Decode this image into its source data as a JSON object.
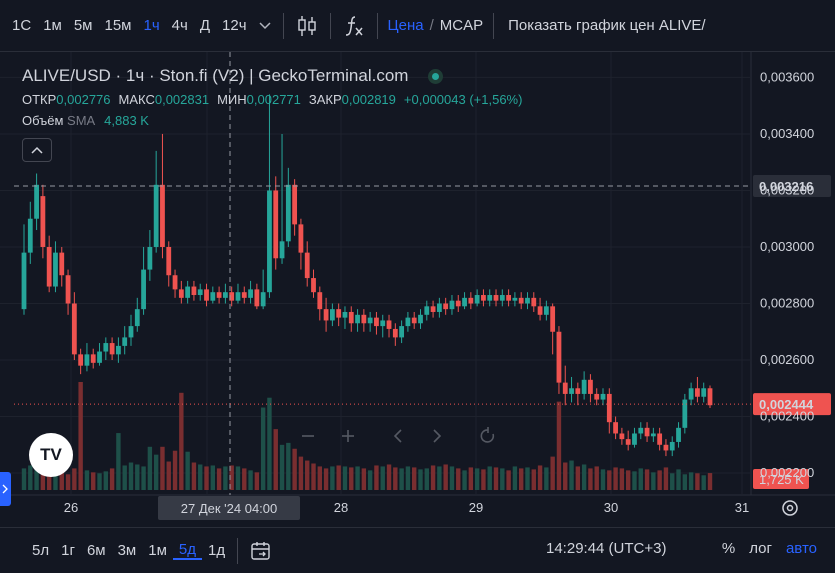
{
  "toolbar": {
    "timeframes": [
      "1С",
      "1м",
      "5м",
      "15м",
      "1ч",
      "4ч",
      "Д",
      "12ч"
    ],
    "active_timeframe": "1ч",
    "price_label": "Цена",
    "separator": "/",
    "mcap_label": "MCAP",
    "show_chart_label": "Показать график цен ALIVE/"
  },
  "legend": {
    "title": "ALIVE/USD · 1ч · Ston.fi (V2) | GeckoTerminal.com",
    "open_key": "ОТКР",
    "open": "0,002776",
    "high_key": "МАКС",
    "high": "0,002831",
    "low_key": "МИН",
    "low": "0,002771",
    "close_key": "ЗАКР",
    "close": "0,002819",
    "change": "+0,000043 (+1,56%)",
    "volume_key": "Объём",
    "volume_sma": "SMA",
    "volume_value": "4,883 K"
  },
  "colors": {
    "up": "#26a69a",
    "down": "#ef5350",
    "accent": "#2962ff",
    "background": "#131722"
  },
  "chart_data": {
    "type": "candlestick",
    "y_ticks": [
      "0,003600",
      "0,003400",
      "0,003200",
      "0,003000",
      "0,002800",
      "0,002600",
      "0,002400",
      "0,002200"
    ],
    "y_tick_values": [
      0.0036,
      0.0034,
      0.0032,
      0.003,
      0.0028,
      0.0026,
      0.0024,
      0.0022
    ],
    "ylim": [
      0.00214,
      0.00369
    ],
    "x_ticks": [
      "26",
      "27",
      "28",
      "29",
      "30",
      "31"
    ],
    "crosshair_price_label": "0,003216",
    "crosshair_price": 0.003216,
    "crosshair_time_label": "27 Дек '24   04:00",
    "last_price_label": "0,002444",
    "last_price": 0.002444,
    "last_volume_label": "1,725 K",
    "candles": [
      [
        0.00278,
        0.00298,
        0.00276,
        0.00308
      ],
      [
        0.00298,
        0.0031,
        0.00294,
        0.00316
      ],
      [
        0.0031,
        0.00322,
        0.00306,
        0.00326
      ],
      [
        0.00318,
        0.003,
        0.00296,
        0.00322
      ],
      [
        0.003,
        0.00286,
        0.00284,
        0.00304
      ],
      [
        0.00286,
        0.00298,
        0.00284,
        0.00302
      ],
      [
        0.00298,
        0.0029,
        0.00286,
        0.003
      ],
      [
        0.0029,
        0.0028,
        0.00276,
        0.00292
      ],
      [
        0.0028,
        0.00262,
        0.0026,
        0.00284
      ],
      [
        0.00262,
        0.00258,
        0.00255,
        0.00264
      ],
      [
        0.00258,
        0.00262,
        0.00256,
        0.00266
      ],
      [
        0.00262,
        0.00259,
        0.00257,
        0.00264
      ],
      [
        0.00259,
        0.00263,
        0.00258,
        0.00266
      ],
      [
        0.00263,
        0.00266,
        0.0026,
        0.00268
      ],
      [
        0.00266,
        0.00262,
        0.0026,
        0.00268
      ],
      [
        0.00262,
        0.00265,
        0.00259,
        0.00268
      ],
      [
        0.00265,
        0.00268,
        0.00262,
        0.00272
      ],
      [
        0.00268,
        0.00272,
        0.00265,
        0.00276
      ],
      [
        0.00272,
        0.00278,
        0.0027,
        0.00282
      ],
      [
        0.00278,
        0.00292,
        0.00276,
        0.003
      ],
      [
        0.00292,
        0.003,
        0.00288,
        0.00306
      ],
      [
        0.003,
        0.00322,
        0.00298,
        0.00334
      ],
      [
        0.00322,
        0.003,
        0.00296,
        0.0034
      ],
      [
        0.003,
        0.0029,
        0.00286,
        0.00302
      ],
      [
        0.0029,
        0.00285,
        0.00282,
        0.00292
      ],
      [
        0.00285,
        0.00282,
        0.0028,
        0.00288
      ],
      [
        0.00282,
        0.00286,
        0.0028,
        0.00288
      ],
      [
        0.00286,
        0.00283,
        0.00281,
        0.00288
      ],
      [
        0.00283,
        0.00285,
        0.00281,
        0.00287
      ],
      [
        0.00285,
        0.00281,
        0.00279,
        0.00287
      ],
      [
        0.00281,
        0.00284,
        0.0028,
        0.00286
      ],
      [
        0.00284,
        0.00282,
        0.0028,
        0.00286
      ],
      [
        0.00282,
        0.00284,
        0.0028,
        0.00287
      ],
      [
        0.00284,
        0.00281,
        0.00279,
        0.00286
      ],
      [
        0.00281,
        0.00284,
        0.0028,
        0.00287
      ],
      [
        0.00284,
        0.00282,
        0.0028,
        0.00286
      ],
      [
        0.00282,
        0.00285,
        0.0028,
        0.00288
      ],
      [
        0.00285,
        0.00279,
        0.00278,
        0.00287
      ],
      [
        0.00279,
        0.00284,
        0.00278,
        0.00292
      ],
      [
        0.00284,
        0.0032,
        0.00282,
        0.00354
      ],
      [
        0.0032,
        0.00296,
        0.00292,
        0.00325
      ],
      [
        0.00296,
        0.00302,
        0.00294,
        0.0034
      ],
      [
        0.00302,
        0.00322,
        0.003,
        0.00328
      ],
      [
        0.00322,
        0.00308,
        0.00304,
        0.00324
      ],
      [
        0.00308,
        0.00298,
        0.00292,
        0.0031
      ],
      [
        0.00298,
        0.00289,
        0.00286,
        0.00302
      ],
      [
        0.00289,
        0.00284,
        0.00282,
        0.00292
      ],
      [
        0.00284,
        0.00278,
        0.00274,
        0.00286
      ],
      [
        0.00278,
        0.00274,
        0.0027,
        0.00282
      ],
      [
        0.00274,
        0.00278,
        0.00272,
        0.0028
      ],
      [
        0.00278,
        0.00275,
        0.00272,
        0.0028
      ],
      [
        0.00275,
        0.00277,
        0.00271,
        0.00279
      ],
      [
        0.00277,
        0.00273,
        0.0027,
        0.00279
      ],
      [
        0.00273,
        0.00276,
        0.0027,
        0.00278
      ],
      [
        0.00276,
        0.00273,
        0.0027,
        0.00278
      ],
      [
        0.00273,
        0.00275,
        0.0027,
        0.00277
      ],
      [
        0.00275,
        0.00272,
        0.00269,
        0.00277
      ],
      [
        0.00272,
        0.00274,
        0.00268,
        0.00276
      ],
      [
        0.00274,
        0.00271,
        0.00268,
        0.00276
      ],
      [
        0.00271,
        0.00268,
        0.00265,
        0.00273
      ],
      [
        0.00268,
        0.00272,
        0.00266,
        0.00274
      ],
      [
        0.00272,
        0.00275,
        0.0027,
        0.00277
      ],
      [
        0.00275,
        0.00273,
        0.00271,
        0.00277
      ],
      [
        0.00273,
        0.00276,
        0.00271,
        0.00278
      ],
      [
        0.00276,
        0.00279,
        0.00274,
        0.00281
      ],
      [
        0.00279,
        0.00277,
        0.00275,
        0.00281
      ],
      [
        0.00277,
        0.0028,
        0.00275,
        0.00282
      ],
      [
        0.0028,
        0.00278,
        0.00276,
        0.00282
      ],
      [
        0.00278,
        0.00281,
        0.00276,
        0.00283
      ],
      [
        0.00281,
        0.00279,
        0.00277,
        0.00283
      ],
      [
        0.00279,
        0.00282,
        0.00278,
        0.00284
      ],
      [
        0.00282,
        0.0028,
        0.00278,
        0.00284
      ],
      [
        0.0028,
        0.00283,
        0.00279,
        0.00285
      ],
      [
        0.00283,
        0.00281,
        0.00279,
        0.00285
      ],
      [
        0.00281,
        0.00283,
        0.00279,
        0.00285
      ],
      [
        0.00283,
        0.00281,
        0.00279,
        0.00285
      ],
      [
        0.00281,
        0.00283,
        0.00279,
        0.00285
      ],
      [
        0.00283,
        0.00281,
        0.00279,
        0.00285
      ],
      [
        0.00281,
        0.00282,
        0.00279,
        0.00284
      ],
      [
        0.00282,
        0.0028,
        0.00278,
        0.00284
      ],
      [
        0.0028,
        0.00282,
        0.00278,
        0.00284
      ],
      [
        0.00282,
        0.00279,
        0.00277,
        0.00284
      ],
      [
        0.00279,
        0.00276,
        0.00274,
        0.00282
      ],
      [
        0.00276,
        0.00279,
        0.00274,
        0.00281
      ],
      [
        0.00279,
        0.0027,
        0.00262,
        0.0028
      ],
      [
        0.0027,
        0.00252,
        0.00248,
        0.00272
      ],
      [
        0.00252,
        0.00248,
        0.00244,
        0.00258
      ],
      [
        0.00248,
        0.0025,
        0.00245,
        0.00254
      ],
      [
        0.0025,
        0.00248,
        0.00244,
        0.00252
      ],
      [
        0.00248,
        0.00253,
        0.00246,
        0.00256
      ],
      [
        0.00253,
        0.00248,
        0.00245,
        0.00255
      ],
      [
        0.00248,
        0.00246,
        0.00244,
        0.0025
      ],
      [
        0.00246,
        0.00248,
        0.00244,
        0.0025
      ],
      [
        0.00248,
        0.00238,
        0.00234,
        0.0025
      ],
      [
        0.00238,
        0.00234,
        0.00232,
        0.0024
      ],
      [
        0.00234,
        0.00232,
        0.0023,
        0.00236
      ],
      [
        0.00232,
        0.0023,
        0.00228,
        0.00235
      ],
      [
        0.0023,
        0.00234,
        0.00229,
        0.00236
      ],
      [
        0.00234,
        0.00236,
        0.00232,
        0.00238
      ],
      [
        0.00236,
        0.00233,
        0.00231,
        0.00238
      ],
      [
        0.00233,
        0.00234,
        0.00231,
        0.00236
      ],
      [
        0.00234,
        0.0023,
        0.00228,
        0.00236
      ],
      [
        0.0023,
        0.00228,
        0.00226,
        0.00232
      ],
      [
        0.00228,
        0.00231,
        0.00226,
        0.00233
      ],
      [
        0.00231,
        0.00236,
        0.00229,
        0.00238
      ],
      [
        0.00236,
        0.00246,
        0.00234,
        0.00248
      ],
      [
        0.00246,
        0.0025,
        0.00244,
        0.00252
      ],
      [
        0.0025,
        0.00247,
        0.00245,
        0.00254
      ],
      [
        0.00247,
        0.0025,
        0.00245,
        0.00252
      ],
      [
        0.0025,
        0.00244,
        0.00243,
        0.00251
      ]
    ],
    "volumes": [
      2.2,
      2.5,
      3.0,
      2.7,
      2.0,
      1.8,
      1.9,
      1.6,
      2.2,
      11.0,
      2.0,
      1.8,
      1.7,
      1.9,
      2.2,
      5.8,
      2.5,
      2.8,
      2.6,
      2.4,
      4.4,
      3.6,
      4.4,
      2.9,
      4.0,
      9.9,
      3.9,
      2.8,
      2.6,
      2.4,
      2.5,
      2.2,
      2.4,
      2.5,
      2.4,
      2.2,
      2.0,
      1.8,
      8.4,
      9.4,
      6.2,
      4.6,
      4.8,
      4.2,
      3.4,
      3.0,
      2.7,
      2.4,
      2.2,
      2.4,
      2.5,
      2.4,
      2.3,
      2.4,
      2.2,
      2.0,
      2.5,
      2.4,
      2.6,
      2.3,
      2.2,
      2.4,
      2.3,
      2.1,
      2.2,
      2.5,
      2.4,
      2.6,
      2.4,
      2.2,
      2.0,
      2.3,
      2.2,
      2.1,
      2.4,
      2.3,
      2.2,
      2.0,
      2.4,
      2.2,
      2.3,
      2.1,
      2.5,
      2.3,
      3.4,
      9.0,
      2.8,
      3.0,
      2.4,
      2.6,
      2.2,
      2.4,
      2.1,
      2.0,
      2.3,
      2.2,
      2.0,
      1.9,
      2.2,
      2.1,
      1.8,
      2.0,
      2.3,
      1.7,
      2.1,
      1.6,
      1.8,
      1.7,
      1.5,
      1.725
    ],
    "volume_max": 11.0
  },
  "nav_icons": [
    "minus-icon",
    "plus-icon",
    "chevron-left-icon",
    "chevron-right-icon",
    "reset-icon"
  ],
  "bottom": {
    "ranges": [
      "5л",
      "1г",
      "6м",
      "3м",
      "1м",
      "5д",
      "1д"
    ],
    "active_range": "5д",
    "clock": "14:29:44 (UTC+3)",
    "percent": "%",
    "log": "лог",
    "auto": "авто"
  },
  "logo_text": "TV"
}
